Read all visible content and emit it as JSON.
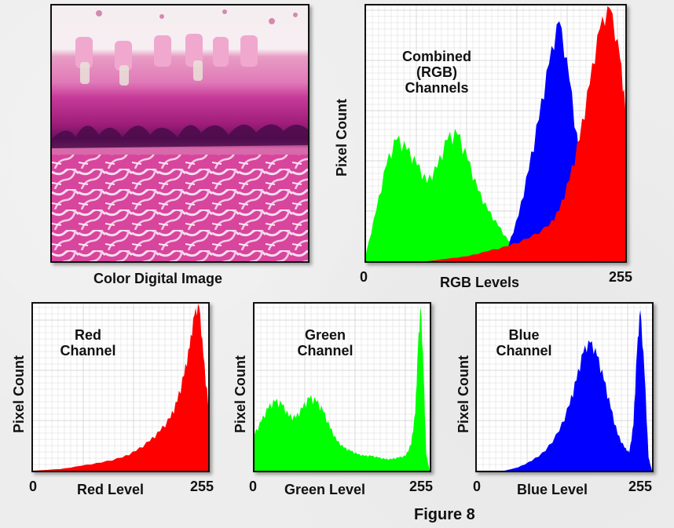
{
  "photo": {
    "caption": "Color Digital Image"
  },
  "figure_caption": "Figure 8",
  "colors": {
    "red": "#ff0000",
    "green": "#00ff00",
    "blue": "#0000ff",
    "grid": "#d8d8d8"
  },
  "chart_data": [
    {
      "id": "combined",
      "type": "area",
      "title_lines": [
        "Combined",
        "(RGB)",
        "Channels"
      ],
      "xlabel": "RGB Levels",
      "ylabel": "Pixel Count",
      "x_ticks": [
        "0",
        "255"
      ],
      "xlim": [
        0,
        255
      ],
      "ylim": [
        0,
        100
      ],
      "grid": true,
      "series": [
        {
          "name": "Green",
          "color": "#00ff00",
          "x": [
            0,
            10,
            20,
            30,
            40,
            50,
            60,
            70,
            80,
            90,
            100,
            110,
            120,
            130,
            140,
            150,
            160,
            170,
            180,
            190
          ],
          "values": [
            3,
            20,
            38,
            48,
            44,
            38,
            31,
            37,
            48,
            50,
            40,
            28,
            20,
            14,
            8,
            6,
            3,
            1,
            0,
            0
          ]
        },
        {
          "name": "Blue",
          "color": "#0000ff",
          "x": [
            130,
            140,
            150,
            160,
            170,
            180,
            190,
            200,
            210,
            220,
            230
          ],
          "values": [
            0,
            6,
            18,
            36,
            56,
            78,
            95,
            72,
            40,
            12,
            0
          ]
        },
        {
          "name": "Red",
          "color": "#ff0000",
          "x": [
            60,
            80,
            100,
            120,
            140,
            160,
            180,
            190,
            200,
            210,
            220,
            230,
            240,
            250,
            255
          ],
          "values": [
            0,
            1,
            2,
            4,
            6,
            9,
            14,
            20,
            32,
            48,
            70,
            92,
            100,
            80,
            60
          ]
        }
      ]
    },
    {
      "id": "red",
      "type": "area",
      "title_lines": [
        "Red",
        "Channel"
      ],
      "xlabel": "Red Level",
      "ylabel": "Pixel Count",
      "x_ticks": [
        "0",
        "255"
      ],
      "xlim": [
        0,
        255
      ],
      "ylim": [
        0,
        100
      ],
      "grid": true,
      "series": [
        {
          "name": "Red",
          "color": "#ff0000",
          "x": [
            0,
            40,
            70,
            100,
            130,
            150,
            170,
            185,
            200,
            210,
            220,
            228,
            235,
            242,
            248,
            255
          ],
          "values": [
            0,
            1,
            3,
            5,
            8,
            12,
            18,
            24,
            32,
            42,
            58,
            75,
            95,
            100,
            70,
            40
          ]
        }
      ]
    },
    {
      "id": "green",
      "type": "area",
      "title_lines": [
        "Green",
        "Channel"
      ],
      "xlabel": "Green Level",
      "ylabel": "Pixel Count",
      "x_ticks": [
        "0",
        "255"
      ],
      "xlim": [
        0,
        255
      ],
      "ylim": [
        0,
        100
      ],
      "grid": true,
      "series": [
        {
          "name": "Green",
          "color": "#00ff00",
          "x": [
            0,
            10,
            20,
            30,
            40,
            50,
            60,
            70,
            80,
            90,
            100,
            110,
            120,
            130,
            140,
            150,
            160,
            170,
            180,
            190,
            200,
            210,
            220,
            228,
            234,
            238,
            242,
            246,
            250,
            255
          ],
          "values": [
            22,
            30,
            38,
            42,
            40,
            33,
            32,
            38,
            44,
            42,
            36,
            26,
            18,
            14,
            12,
            10,
            9,
            9,
            8,
            7,
            7,
            8,
            9,
            16,
            35,
            75,
            100,
            60,
            10,
            0
          ]
        }
      ]
    },
    {
      "id": "blue",
      "type": "area",
      "title_lines": [
        "Blue",
        "Channel"
      ],
      "xlabel": "Blue Level",
      "ylabel": "Pixel Count",
      "x_ticks": [
        "0",
        "255"
      ],
      "xlim": [
        0,
        255
      ],
      "ylim": [
        0,
        100
      ],
      "grid": true,
      "series": [
        {
          "name": "Blue",
          "color": "#0000ff",
          "x": [
            0,
            40,
            60,
            80,
            100,
            120,
            135,
            145,
            155,
            165,
            175,
            185,
            195,
            205,
            215,
            222,
            228,
            233,
            238,
            244,
            250,
            255
          ],
          "values": [
            0,
            0,
            2,
            6,
            12,
            24,
            40,
            55,
            72,
            78,
            70,
            55,
            38,
            22,
            14,
            11,
            28,
            72,
            98,
            60,
            8,
            0
          ]
        }
      ]
    }
  ]
}
